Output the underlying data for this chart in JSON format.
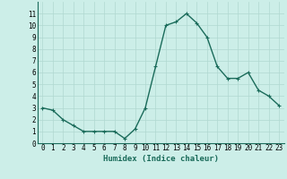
{
  "x": [
    0,
    1,
    2,
    3,
    4,
    5,
    6,
    7,
    8,
    9,
    10,
    11,
    12,
    13,
    14,
    15,
    16,
    17,
    18,
    19,
    20,
    21,
    22,
    23
  ],
  "y": [
    3.0,
    2.8,
    2.0,
    1.5,
    1.0,
    1.0,
    1.0,
    1.0,
    0.4,
    1.2,
    3.0,
    6.5,
    10.0,
    10.3,
    11.0,
    10.2,
    9.0,
    6.5,
    5.5,
    5.5,
    6.0,
    4.5,
    4.0,
    3.2
  ],
  "line_color": "#1a6b5a",
  "marker": "+",
  "marker_size": 3,
  "marker_linewidth": 0.8,
  "bg_color": "#cceee8",
  "grid_color": "#b0d8d0",
  "xlabel": "Humidex (Indice chaleur)",
  "xlim": [
    -0.5,
    23.5
  ],
  "ylim": [
    0,
    12
  ],
  "yticks": [
    0,
    1,
    2,
    3,
    4,
    5,
    6,
    7,
    8,
    9,
    10,
    11
  ],
  "xticks": [
    0,
    1,
    2,
    3,
    4,
    5,
    6,
    7,
    8,
    9,
    10,
    11,
    12,
    13,
    14,
    15,
    16,
    17,
    18,
    19,
    20,
    21,
    22,
    23
  ],
  "xlabel_fontsize": 6.5,
  "tick_fontsize": 5.5,
  "line_width": 1.0
}
